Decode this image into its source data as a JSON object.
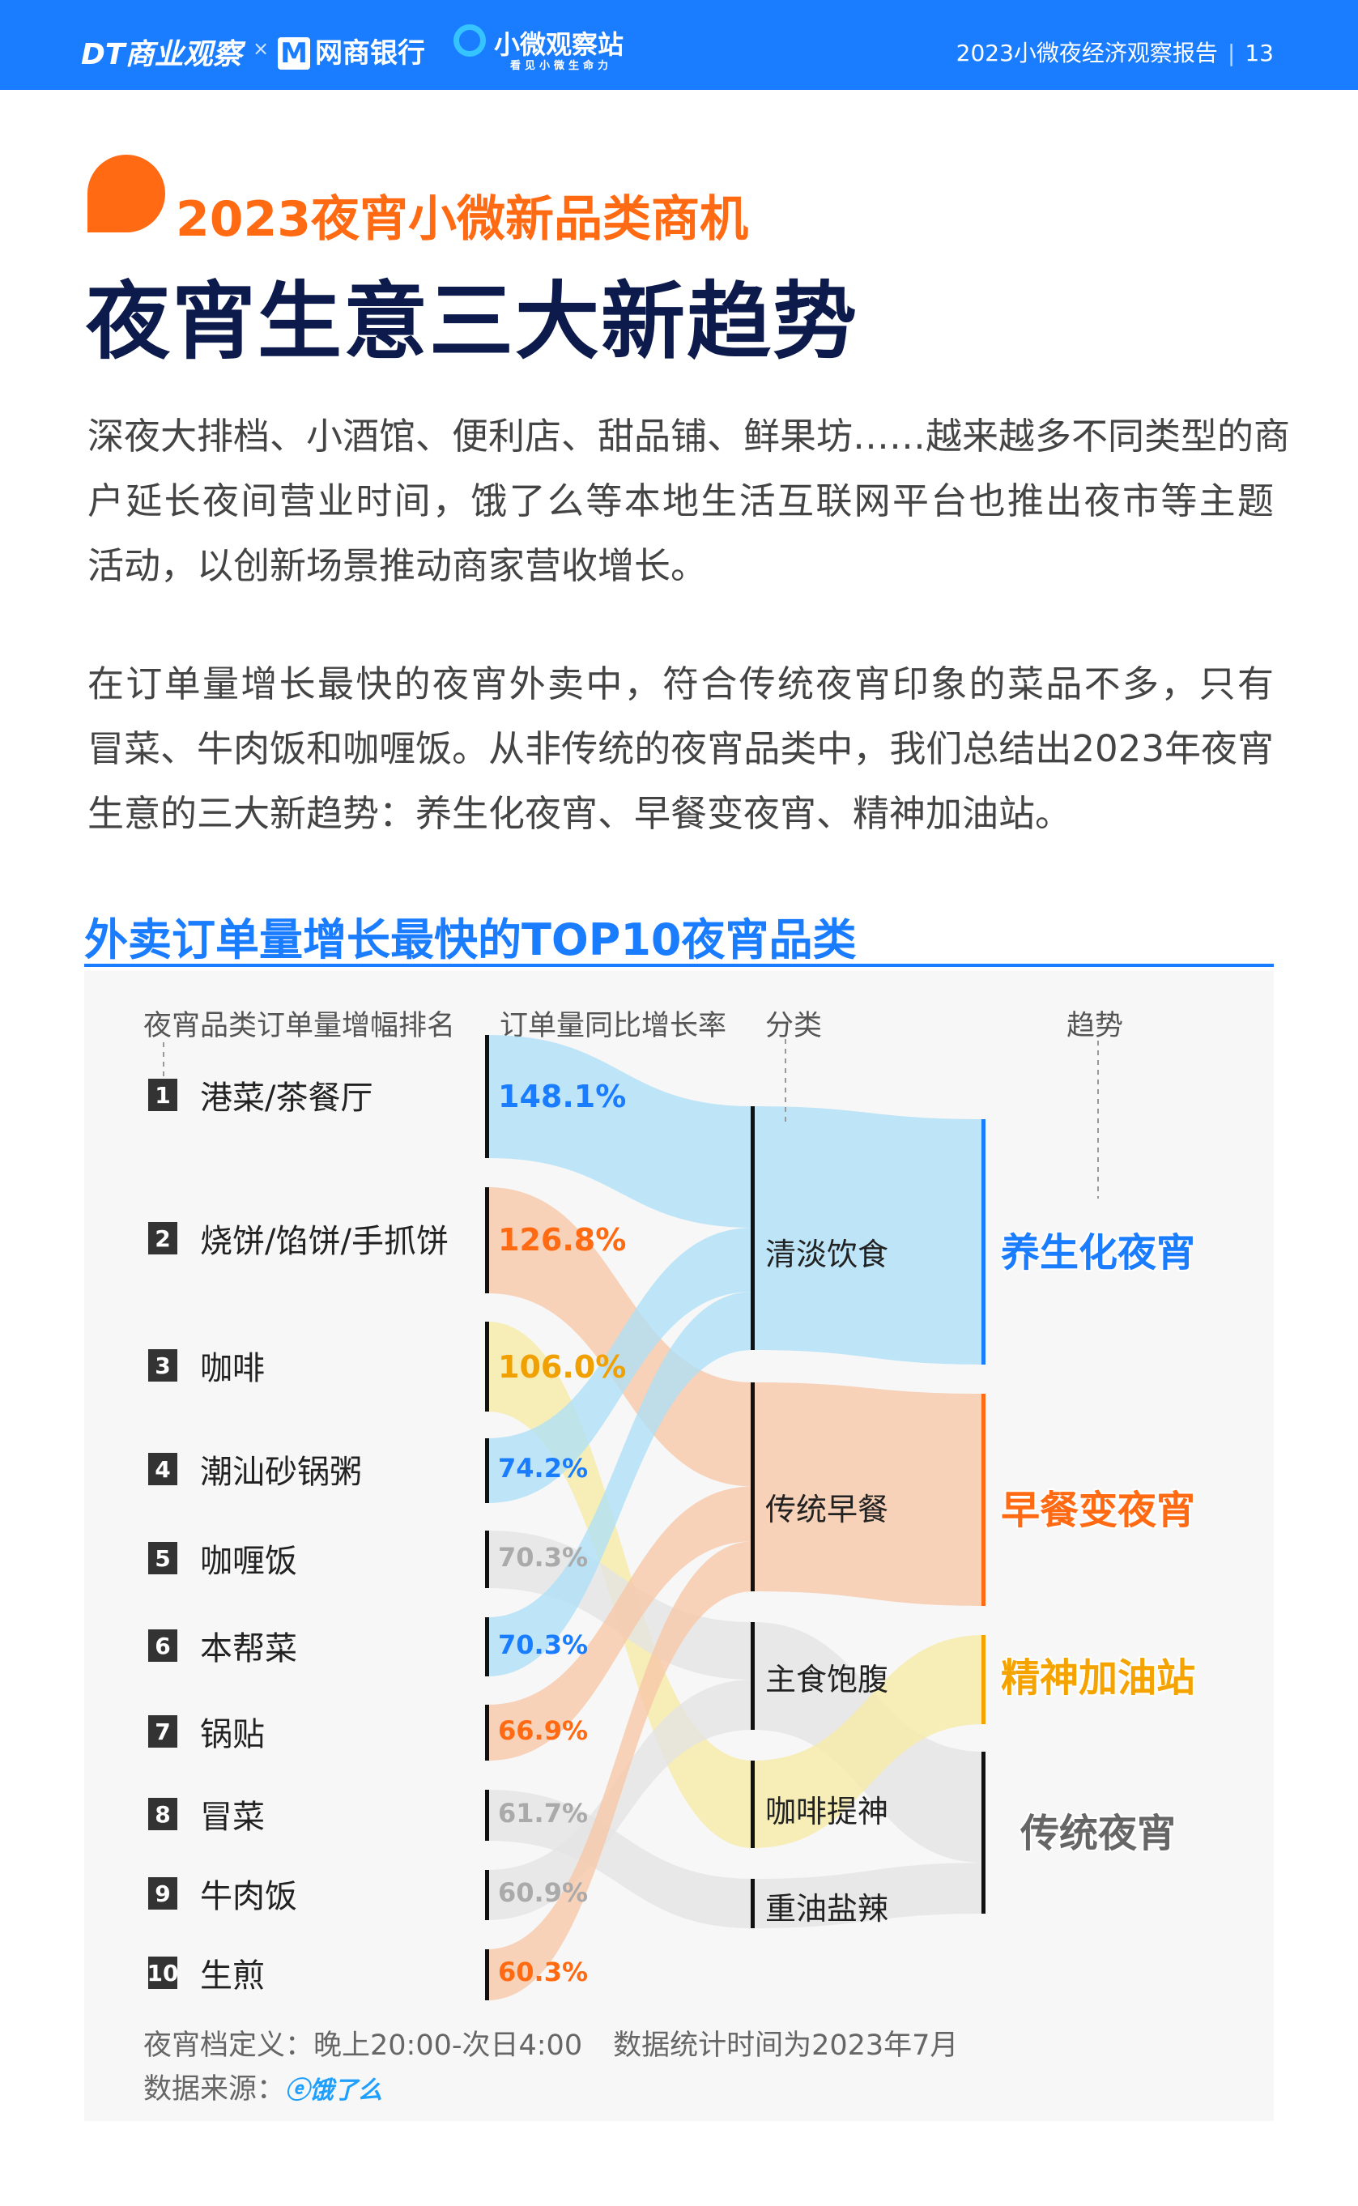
{
  "header": {
    "logo_dt": "DT商业观察",
    "logo_x": "×",
    "logo_bank": "网商银行",
    "logo_station": "小微观察站",
    "logo_station_slogan": "看见小微生命力",
    "report": "2023小微夜经济观察报告",
    "page": "13",
    "color": "#1a7cff"
  },
  "subtitle": "2023夜宵小微新品类商机",
  "title": "夜宵生意三大新趋势",
  "paragraphs": [
    [
      "深夜大排档、小酒馆、便利店、甜品铺、鲜果坊……越来越多不同类型的商",
      "户延长夜间营业时间，饿了么等本地生活互联网平台也推出夜市等主题",
      "活动，以创新场景推动商家营收增长。"
    ],
    [
      "在订单量增长最快的夜宵外卖中，符合传统夜宵印象的菜品不多，只有",
      "冒菜、牛肉饭和咖喱饭。从非传统的夜宵品类中，我们总结出2023年夜宵",
      "生意的三大新趋势：养生化夜宵、早餐变夜宵、精神加油站。"
    ]
  ],
  "chart_data": {
    "type": "sankey",
    "title": "外卖订单量增长最快的TOP10夜宵品类",
    "columns": [
      "夜宵品类订单量增幅排名",
      "订单量同比增长率",
      "分类",
      "趋势"
    ],
    "items": [
      {
        "rank": "1",
        "name": "港菜/茶餐厅",
        "growth": "148.1%",
        "value": 148.1,
        "category": "清淡饮食",
        "color": "#1a7cff"
      },
      {
        "rank": "2",
        "name": "烧饼/馅饼/手抓饼",
        "growth": "126.8%",
        "value": 126.8,
        "category": "传统早餐",
        "color": "#ff6a13"
      },
      {
        "rank": "3",
        "name": "咖啡",
        "growth": "106.0%",
        "value": 106.0,
        "category": "咖啡提神",
        "color": "#f0a000"
      },
      {
        "rank": "4",
        "name": "潮汕砂锅粥",
        "growth": "74.2%",
        "value": 74.2,
        "category": "清淡饮食",
        "color": "#1a7cff"
      },
      {
        "rank": "5",
        "name": "咖喱饭",
        "growth": "70.3%",
        "value": 70.3,
        "category": "主食饱腹",
        "color": "#aaaaaa"
      },
      {
        "rank": "6",
        "name": "本帮菜",
        "growth": "70.3%",
        "value": 70.3,
        "category": "清淡饮食",
        "color": "#1a7cff"
      },
      {
        "rank": "7",
        "name": "锅贴",
        "growth": "66.9%",
        "value": 66.9,
        "category": "传统早餐",
        "color": "#ff6a13"
      },
      {
        "rank": "8",
        "name": "冒菜",
        "growth": "61.7%",
        "value": 61.7,
        "category": "重油盐辣",
        "color": "#aaaaaa"
      },
      {
        "rank": "9",
        "name": "牛肉饭",
        "growth": "60.9%",
        "value": 60.9,
        "category": "主食饱腹",
        "color": "#aaaaaa"
      },
      {
        "rank": "10",
        "name": "生煎",
        "growth": "60.3%",
        "value": 60.3,
        "category": "传统早餐",
        "color": "#ff6a13"
      }
    ],
    "categories": [
      {
        "name": "清淡饮食",
        "trend": "养生化夜宵"
      },
      {
        "name": "传统早餐",
        "trend": "早餐变夜宵"
      },
      {
        "name": "主食饱腹",
        "trend": "传统夜宵"
      },
      {
        "name": "咖啡提神",
        "trend": "精神加油站"
      },
      {
        "name": "重油盐辣",
        "trend": "传统夜宵"
      }
    ],
    "trends": [
      {
        "name": "养生化夜宵",
        "color": "#1a7cff"
      },
      {
        "name": "早餐变夜宵",
        "color": "#ff6a13"
      },
      {
        "name": "精神加油站",
        "color": "#f5a300"
      },
      {
        "name": "传统夜宵",
        "color": "#666666"
      }
    ],
    "flow_colors": {
      "blue": "#aee0f7",
      "orange": "#f7c6a6",
      "yellow": "#f7eaa4",
      "gray": "#e4e4e4"
    }
  },
  "footnotes": {
    "definition": "夜宵档定义：晚上20:00-次日4:00",
    "period": "数据统计时间为2023年7月",
    "source_label": "数据来源：",
    "source_logo": "饿了么"
  }
}
